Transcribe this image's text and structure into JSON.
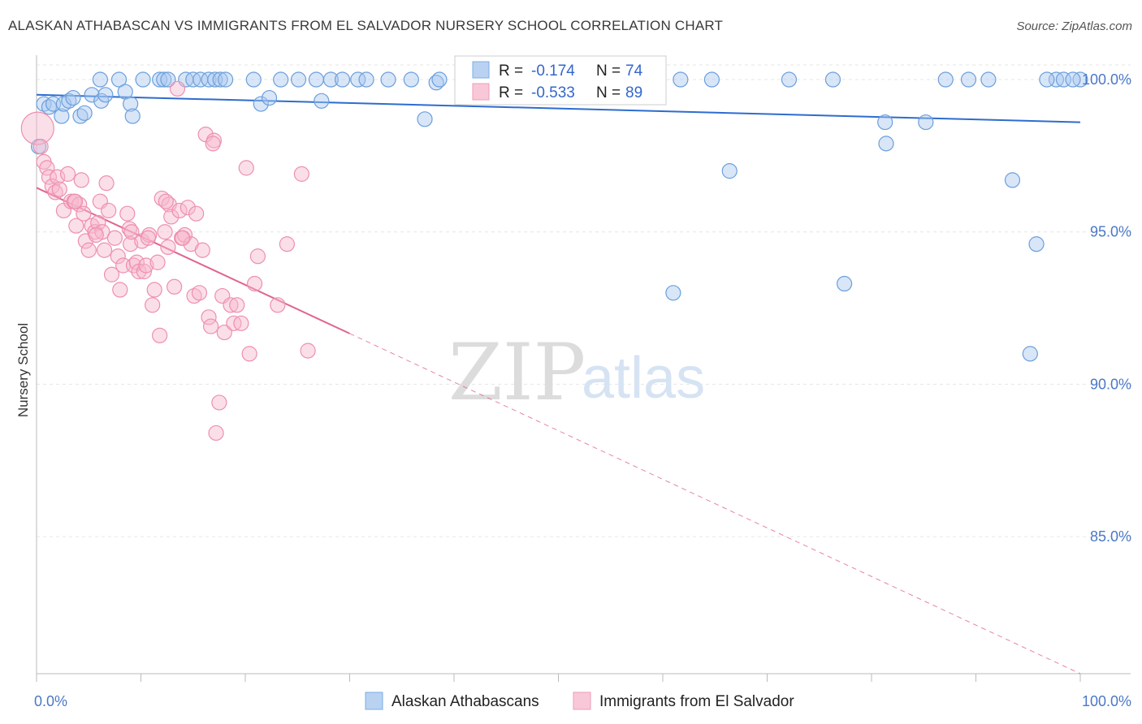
{
  "title": "ALASKAN ATHABASCAN VS IMMIGRANTS FROM EL SALVADOR NURSERY SCHOOL CORRELATION CHART",
  "source": "Source: ZipAtlas.com",
  "watermark": {
    "zip": "ZIP",
    "atlas": "atlas"
  },
  "colors": {
    "blue": "#7aaee6",
    "blue_line": "#2d6ccf",
    "pink": "#f19bb6",
    "pink_line": "#e06590",
    "tick": "#4a78c8"
  },
  "chart_data": {
    "type": "scatter",
    "title": "ALASKAN ATHABASCAN VS IMMIGRANTS FROM EL SALVADOR NURSERY SCHOOL CORRELATION CHART",
    "xlabel": "",
    "ylabel": "Nursery School",
    "xlim": [
      0,
      100
    ],
    "ylim": [
      80.5,
      100.8
    ],
    "x_tick_labels": [
      {
        "v": 0,
        "label": "0.0%"
      },
      {
        "v": 100,
        "label": "100.0%"
      }
    ],
    "y_ticks": [
      {
        "v": 100,
        "label": "100.0%"
      },
      {
        "v": 95,
        "label": "95.0%"
      },
      {
        "v": 90,
        "label": "90.0%"
      },
      {
        "v": 85,
        "label": "85.0%"
      }
    ],
    "stats": [
      {
        "r_label": "R =",
        "r": "-0.174",
        "n_label": "N =",
        "n": "74"
      },
      {
        "r_label": "R =",
        "r": "-0.533",
        "n_label": "N =",
        "n": "89"
      }
    ],
    "series": [
      {
        "name": "Alaskan Athabascans",
        "color": "#7aaee6",
        "trend": {
          "x0": 0,
          "y0": 99.5,
          "x1": 100,
          "y1": 98.6
        },
        "points": [
          [
            0.2,
            97.8
          ],
          [
            0.7,
            99.2
          ],
          [
            1.2,
            99.1
          ],
          [
            1.6,
            99.2
          ],
          [
            2.4,
            98.8
          ],
          [
            2.6,
            99.2
          ],
          [
            3.1,
            99.3
          ],
          [
            3.5,
            99.4
          ],
          [
            4.2,
            98.8
          ],
          [
            4.6,
            98.9
          ],
          [
            5.3,
            99.5
          ],
          [
            6.2,
            99.3
          ],
          [
            6.6,
            99.5
          ],
          [
            6.1,
            100
          ],
          [
            7.9,
            100
          ],
          [
            8.5,
            99.6
          ],
          [
            9.0,
            99.2
          ],
          [
            9.2,
            98.8
          ],
          [
            10.2,
            100
          ],
          [
            11.8,
            100
          ],
          [
            12.2,
            100
          ],
          [
            12.6,
            100
          ],
          [
            14.3,
            100
          ],
          [
            15.0,
            100
          ],
          [
            15.7,
            100
          ],
          [
            16.5,
            100
          ],
          [
            17.1,
            100
          ],
          [
            17.6,
            100
          ],
          [
            18.1,
            100
          ],
          [
            20.8,
            100
          ],
          [
            21.5,
            99.2
          ],
          [
            22.3,
            99.4
          ],
          [
            23.4,
            100
          ],
          [
            25.1,
            100
          ],
          [
            26.8,
            100
          ],
          [
            27.3,
            99.3
          ],
          [
            28.2,
            100
          ],
          [
            29.3,
            100
          ],
          [
            30.8,
            100
          ],
          [
            31.6,
            100
          ],
          [
            33.7,
            100
          ],
          [
            35.9,
            100
          ],
          [
            38.3,
            99.9
          ],
          [
            38.6,
            100
          ],
          [
            41.1,
            100
          ],
          [
            42.3,
            100
          ],
          [
            46.5,
            100
          ],
          [
            48.1,
            100
          ],
          [
            49.4,
            100
          ],
          [
            37.2,
            98.7
          ],
          [
            53.5,
            100
          ],
          [
            57.1,
            100
          ],
          [
            59.2,
            100
          ],
          [
            61.0,
            93.0
          ],
          [
            66.4,
            97.0
          ],
          [
            61.7,
            100
          ],
          [
            64.7,
            100
          ],
          [
            72.1,
            100
          ],
          [
            76.3,
            100
          ],
          [
            77.4,
            93.3
          ],
          [
            81.3,
            98.6
          ],
          [
            81.4,
            97.9
          ],
          [
            85.2,
            98.6
          ],
          [
            87.1,
            100
          ],
          [
            89.3,
            100
          ],
          [
            91.2,
            100
          ],
          [
            93.5,
            96.7
          ],
          [
            95.2,
            91.0
          ],
          [
            95.8,
            94.6
          ],
          [
            97.7,
            100
          ],
          [
            100.0,
            100
          ],
          [
            96.8,
            100
          ],
          [
            98.4,
            100
          ],
          [
            99.3,
            100
          ]
        ]
      },
      {
        "name": "Immigrants from El Salvador",
        "color": "#f19bb6",
        "trend": {
          "x0": 0,
          "y0": 96.45,
          "x1": 100,
          "y1": 80.5,
          "solid_until": 30
        },
        "points": [
          [
            0.1,
            98.4
          ],
          [
            0.4,
            97.8
          ],
          [
            0.7,
            97.3
          ],
          [
            1.0,
            97.1
          ],
          [
            1.2,
            96.8
          ],
          [
            1.5,
            96.5
          ],
          [
            1.8,
            96.3
          ],
          [
            2.0,
            96.8
          ],
          [
            2.2,
            96.4
          ],
          [
            2.6,
            95.7
          ],
          [
            3.0,
            96.9
          ],
          [
            3.3,
            96.0
          ],
          [
            3.6,
            96.0
          ],
          [
            3.8,
            95.2
          ],
          [
            4.1,
            95.9
          ],
          [
            4.3,
            96.7
          ],
          [
            4.5,
            95.6
          ],
          [
            4.7,
            94.7
          ],
          [
            5.0,
            94.4
          ],
          [
            5.3,
            95.2
          ],
          [
            5.6,
            95.0
          ],
          [
            5.9,
            95.3
          ],
          [
            6.1,
            96.0
          ],
          [
            6.3,
            95.0
          ],
          [
            6.5,
            94.4
          ],
          [
            6.7,
            96.6
          ],
          [
            6.9,
            95.7
          ],
          [
            7.2,
            93.6
          ],
          [
            7.5,
            94.8
          ],
          [
            7.8,
            94.2
          ],
          [
            8.0,
            93.1
          ],
          [
            8.3,
            93.9
          ],
          [
            8.7,
            95.6
          ],
          [
            8.9,
            95.1
          ],
          [
            9.0,
            94.6
          ],
          [
            9.3,
            93.9
          ],
          [
            9.6,
            94.0
          ],
          [
            9.8,
            93.7
          ],
          [
            10.1,
            94.7
          ],
          [
            10.3,
            93.7
          ],
          [
            10.5,
            93.9
          ],
          [
            10.8,
            94.9
          ],
          [
            11.1,
            92.6
          ],
          [
            11.3,
            93.1
          ],
          [
            11.6,
            94.0
          ],
          [
            11.8,
            91.6
          ],
          [
            12.0,
            96.1
          ],
          [
            12.3,
            95.0
          ],
          [
            12.6,
            94.5
          ],
          [
            12.7,
            95.9
          ],
          [
            12.9,
            95.5
          ],
          [
            13.2,
            93.2
          ],
          [
            13.5,
            99.7
          ],
          [
            13.7,
            95.7
          ],
          [
            13.9,
            94.8
          ],
          [
            14.2,
            94.9
          ],
          [
            14.5,
            95.8
          ],
          [
            14.8,
            94.6
          ],
          [
            15.1,
            92.9
          ],
          [
            15.3,
            95.6
          ],
          [
            15.6,
            93.0
          ],
          [
            15.9,
            94.4
          ],
          [
            16.2,
            98.2
          ],
          [
            16.5,
            92.2
          ],
          [
            16.7,
            91.9
          ],
          [
            17.0,
            98.0
          ],
          [
            17.2,
            88.4
          ],
          [
            17.5,
            89.4
          ],
          [
            17.8,
            92.9
          ],
          [
            18.0,
            91.7
          ],
          [
            18.6,
            92.6
          ],
          [
            18.9,
            92.0
          ],
          [
            19.2,
            92.6
          ],
          [
            19.6,
            92.0
          ],
          [
            20.1,
            97.1
          ],
          [
            20.4,
            91.0
          ],
          [
            20.9,
            93.3
          ],
          [
            21.2,
            94.2
          ],
          [
            23.1,
            92.6
          ],
          [
            24.0,
            94.6
          ],
          [
            25.4,
            96.9
          ],
          [
            26.0,
            91.1
          ],
          [
            16.9,
            97.9
          ],
          [
            9.1,
            95.0
          ],
          [
            10.7,
            94.8
          ],
          [
            5.7,
            94.9
          ],
          [
            3.7,
            96.0
          ],
          [
            12.4,
            96.0
          ],
          [
            14.0,
            94.8
          ]
        ]
      }
    ]
  }
}
